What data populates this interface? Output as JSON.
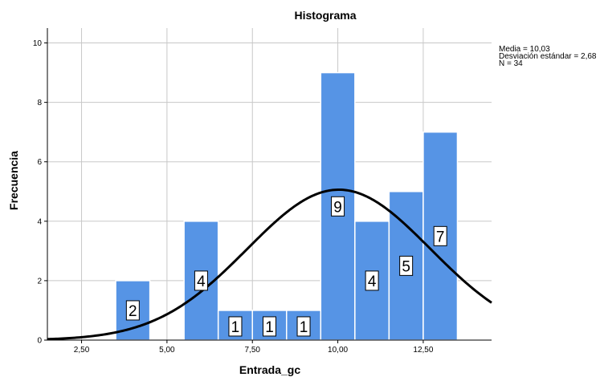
{
  "chart_data": {
    "type": "bar",
    "title": "Histograma",
    "xlabel": "Entrada_gc",
    "ylabel": "Frecuencia",
    "xlim": [
      1.5,
      14.5
    ],
    "ylim": [
      0,
      10.5
    ],
    "x_ticks": [
      {
        "value": 2.5,
        "label": "2,50"
      },
      {
        "value": 5.0,
        "label": "5,00"
      },
      {
        "value": 7.5,
        "label": "7,50"
      },
      {
        "value": 10.0,
        "label": "10,00"
      },
      {
        "value": 12.5,
        "label": "12,50"
      }
    ],
    "y_ticks": [
      {
        "value": 0,
        "label": "0"
      },
      {
        "value": 2,
        "label": "2"
      },
      {
        "value": 4,
        "label": "4"
      },
      {
        "value": 6,
        "label": "6"
      },
      {
        "value": 8,
        "label": "8"
      },
      {
        "value": 10,
        "label": "10"
      }
    ],
    "bins": [
      {
        "x0": 3.5,
        "x1": 4.5,
        "value": 2,
        "label": "2"
      },
      {
        "x0": 4.5,
        "x1": 5.5,
        "value": 0,
        "label": ""
      },
      {
        "x0": 5.5,
        "x1": 6.5,
        "value": 4,
        "label": "4"
      },
      {
        "x0": 6.5,
        "x1": 7.5,
        "value": 1,
        "label": "1"
      },
      {
        "x0": 7.5,
        "x1": 8.5,
        "value": 1,
        "label": "1"
      },
      {
        "x0": 8.5,
        "x1": 9.5,
        "value": 1,
        "label": "1"
      },
      {
        "x0": 9.5,
        "x1": 10.5,
        "value": 9,
        "label": "9"
      },
      {
        "x0": 10.5,
        "x1": 11.5,
        "value": 4,
        "label": "4"
      },
      {
        "x0": 11.5,
        "x1": 12.5,
        "value": 5,
        "label": "5"
      },
      {
        "x0": 12.5,
        "x1": 13.5,
        "value": 7,
        "label": "7"
      }
    ],
    "normal_curve": {
      "mean": 10.03,
      "sd": 2.68,
      "n": 34,
      "bin_width": 1
    },
    "stats": [
      "Media = 10,03",
      "Desviación estándar = 2,68",
      "N = 34"
    ],
    "grid": true,
    "colors": {
      "bar": "#5694e5",
      "curve": "#000000",
      "grid": "#c8c8c8"
    }
  }
}
